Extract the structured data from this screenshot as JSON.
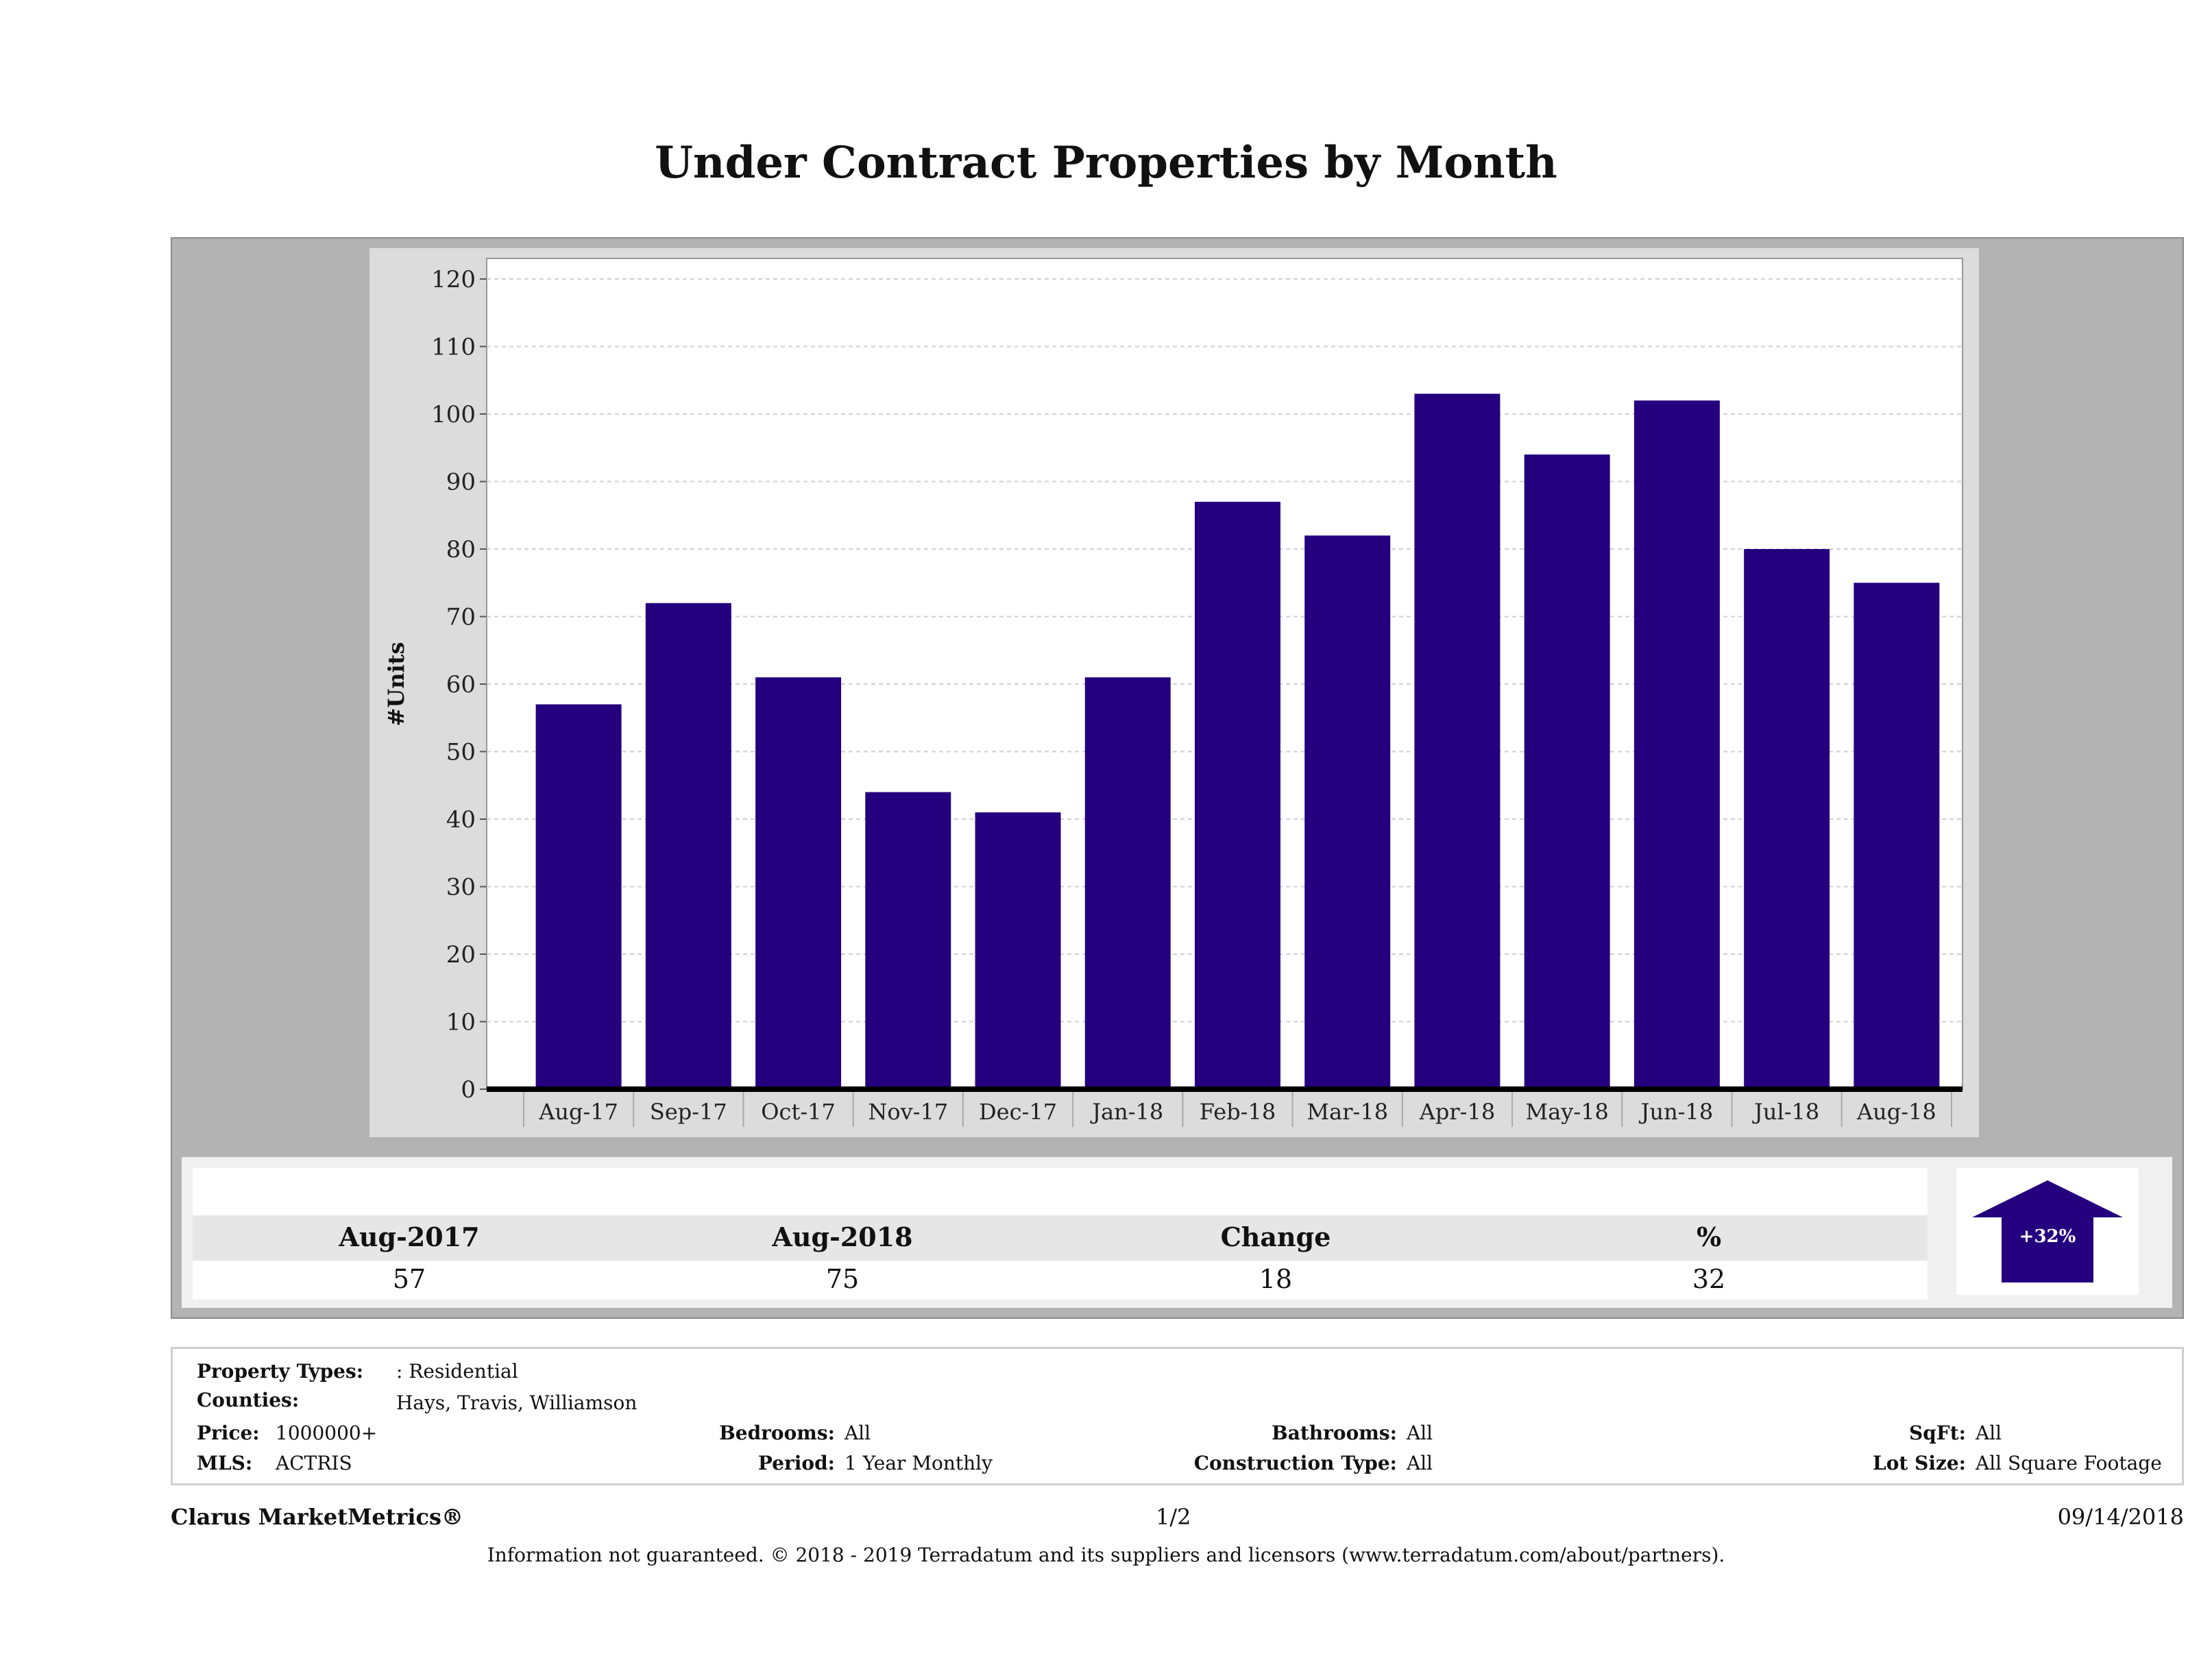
{
  "title": "Under Contract Properties by Month",
  "chart_data": {
    "type": "bar",
    "title": "Under Contract Properties by Month",
    "xlabel": "",
    "ylabel": "#Units",
    "ylim": [
      0,
      120
    ],
    "yticks": [
      0,
      10,
      20,
      30,
      40,
      50,
      60,
      70,
      80,
      90,
      100,
      110,
      120
    ],
    "grid": true,
    "categories": [
      "Aug-17",
      "Sep-17",
      "Oct-17",
      "Nov-17",
      "Dec-17",
      "Jan-18",
      "Feb-18",
      "Mar-18",
      "Apr-18",
      "May-18",
      "Jun-18",
      "Jul-18",
      "Aug-18"
    ],
    "values": [
      57,
      72,
      61,
      44,
      41,
      61,
      87,
      82,
      103,
      94,
      102,
      80,
      75
    ],
    "bar_color": "#24007f"
  },
  "stats": {
    "headers": [
      "Aug-2017",
      "Aug-2018",
      "Change",
      "%"
    ],
    "values": [
      "57",
      "75",
      "18",
      "32"
    ],
    "badge": "+32%",
    "badge_color": "#24007f"
  },
  "info": {
    "property_types_label": "Property Types:",
    "property_types": ": Residential",
    "counties_label": "Counties:",
    "counties": "Hays, Travis, Williamson",
    "price_label": "Price:",
    "price": "1000000+",
    "mls_label": "MLS:",
    "mls": "ACTRIS",
    "bedrooms_label": "Bedrooms:",
    "bedrooms": "All",
    "period_label": "Period:",
    "period": "1 Year Monthly",
    "bathrooms_label": "Bathrooms:",
    "bathrooms": "All",
    "construction_label": "Construction Type:",
    "construction": "All",
    "sqft_label": "SqFt:",
    "sqft": "All",
    "lot_label": "Lot Size:",
    "lot": "All Square Footage"
  },
  "footer": {
    "brand": "Clarus MarketMetrics®",
    "page": "1/2",
    "date": "09/14/2018",
    "disclaimer": "Information not guaranteed. © 2018 - 2019 Terradatum and its suppliers and licensors (www.terradatum.com/about/partners)."
  }
}
